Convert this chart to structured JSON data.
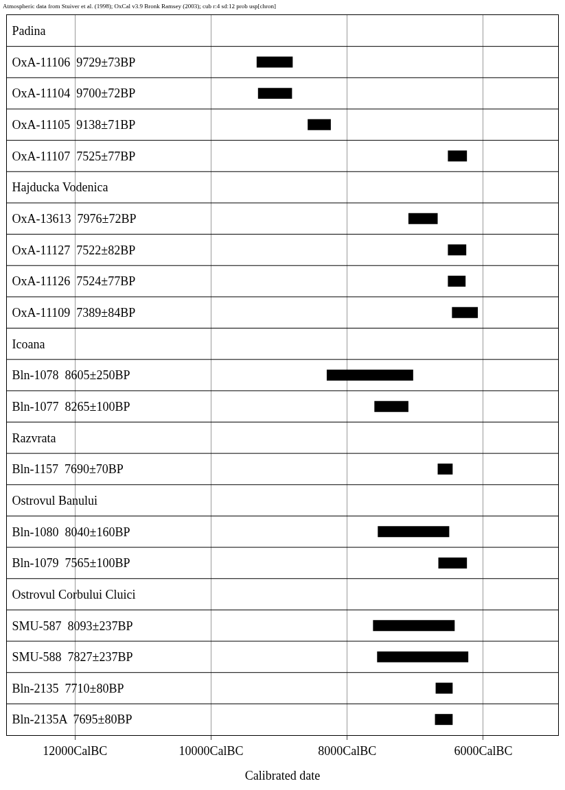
{
  "chart_data": {
    "type": "bar",
    "orientation": "horizontal",
    "title": "Atmospheric data from Stuiver et al. (1998); OxCal v3.9 Bronk Ramsey (2003); cub r:4 sd:12 prob usp[chron]",
    "xlabel": "Calibrated date",
    "categories": [
      "Padina",
      "OxA-11106  9729±73BP",
      "OxA-11104  9700±72BP",
      "OxA-11105  9138±71BP",
      "OxA-11107  7525±77BP",
      "Hajducka Vodenica",
      "OxA-13613  7976±72BP",
      "OxA-11127  7522±82BP",
      "OxA-11126  7524±77BP",
      "OxA-11109  7389±84BP",
      "Icoana",
      "Bln-1078  8605±250BP",
      "Bln-1077  8265±100BP",
      "Razvrata",
      "Bln-1157  7690±70BP",
      "Ostrovul Banului",
      "Bln-1080  8040±160BP",
      "Bln-1079  7565±100BP",
      "Ostrovul Corbului Cluici",
      "SMU-587  8093±237BP",
      "SMU-588  7827±237BP",
      "Bln-2135  7710±80BP",
      "Bln-2135A  7695±80BP"
    ],
    "base": [
      null,
      8800,
      8810,
      8240,
      6240,
      null,
      6670,
      6250,
      6260,
      6080,
      null,
      7030,
      7100,
      null,
      6450,
      null,
      6500,
      6240,
      null,
      6420,
      6220,
      6450,
      6450
    ],
    "values": [
      null,
      530,
      500,
      340,
      280,
      null,
      430,
      270,
      260,
      380,
      null,
      1270,
      500,
      null,
      220,
      null,
      1050,
      420,
      null,
      1200,
      1340,
      250,
      260
    ],
    "color": "#000000",
    "xlim": [
      13000,
      4900
    ],
    "xticks": [
      {
        "value": 12000,
        "label": "12000CalBC"
      },
      {
        "value": 10000,
        "label": "10000CalBC"
      },
      {
        "value": 8000,
        "label": "8000CalBC"
      },
      {
        "value": 6000,
        "label": "6000CalBC"
      }
    ],
    "grid": "x"
  }
}
